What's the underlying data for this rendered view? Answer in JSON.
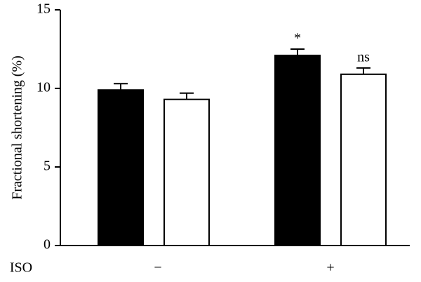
{
  "chart_data": {
    "type": "bar",
    "ylabel": "Fractional shortening (%)",
    "xlabel": "ISO",
    "categories": [
      "−",
      "+"
    ],
    "series": [
      {
        "color": "#000000",
        "values": [
          9.9,
          12.1
        ],
        "errors": [
          0.4,
          0.4
        ],
        "labels": [
          null,
          "*"
        ]
      },
      {
        "color": "#ffffff",
        "values": [
          9.3,
          10.9
        ],
        "errors": [
          0.4,
          0.4
        ],
        "labels": [
          null,
          "ns"
        ]
      }
    ],
    "ylim": [
      0,
      15
    ],
    "yticks": [
      0,
      5,
      10,
      15
    ]
  }
}
